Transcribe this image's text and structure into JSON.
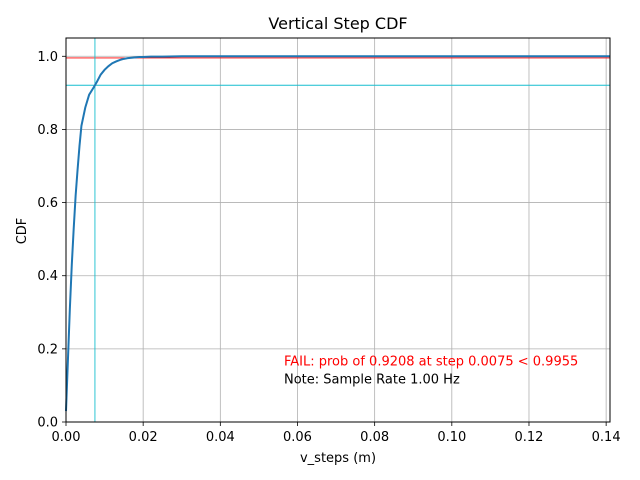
{
  "chart_data": {
    "type": "line",
    "title": "Vertical Step CDF",
    "xlabel": "v_steps (m)",
    "ylabel": "CDF",
    "xlim": [
      0,
      0.141
    ],
    "ylim": [
      0,
      1.05
    ],
    "x_ticks": [
      "0.00",
      "0.02",
      "0.04",
      "0.06",
      "0.08",
      "0.10",
      "0.12",
      "0.14"
    ],
    "x_tick_values": [
      0,
      0.02,
      0.04,
      0.06,
      0.08,
      0.1,
      0.12,
      0.14
    ],
    "y_ticks": [
      "0.0",
      "0.2",
      "0.4",
      "0.6",
      "0.8",
      "1.0"
    ],
    "y_tick_values": [
      0,
      0.2,
      0.4,
      0.6,
      0.8,
      1.0
    ],
    "grid": true,
    "series": [
      {
        "color": "#1f77b4",
        "x": [
          0,
          0.0005,
          0.001,
          0.0015,
          0.002,
          0.0025,
          0.003,
          0.0035,
          0.004,
          0.005,
          0.006,
          0.007,
          0.0075,
          0.008,
          0.009,
          0.01,
          0.011,
          0.012,
          0.013,
          0.014,
          0.015,
          0.016,
          0.017,
          0.018,
          0.019,
          0.02,
          0.022,
          0.025,
          0.03,
          0.035,
          0.04,
          0.06,
          0.08,
          0.1,
          0.12,
          0.141
        ],
        "y": [
          0.03,
          0.17,
          0.31,
          0.43,
          0.53,
          0.62,
          0.69,
          0.755,
          0.81,
          0.86,
          0.895,
          0.912,
          0.9208,
          0.93,
          0.95,
          0.963,
          0.973,
          0.981,
          0.986,
          0.99,
          0.993,
          0.995,
          0.996,
          0.997,
          0.998,
          0.998,
          0.999,
          0.999,
          1.0,
          1.0,
          1.0,
          1.0,
          1.0,
          1.0,
          1.0,
          1.0
        ]
      }
    ],
    "reference_lines": [
      {
        "orientation": "horizontal",
        "value": 0.9955,
        "color": "#ff0000"
      },
      {
        "orientation": "horizontal",
        "value": 0.9208,
        "color": "#17becf"
      },
      {
        "orientation": "vertical",
        "value": 0.0075,
        "color": "#17becf"
      }
    ],
    "annotations": [
      {
        "text": "FAIL: prob of 0.9208 at step 0.0075 < 0.9955",
        "x": 0.0565,
        "y": 0.155,
        "color": "#ff0000"
      },
      {
        "text": "Note: Sample Rate 1.00 Hz",
        "x": 0.0565,
        "y": 0.105,
        "color": "#000000"
      }
    ]
  }
}
